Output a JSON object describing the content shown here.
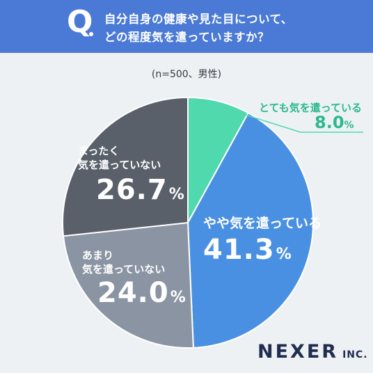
{
  "question": {
    "mark": "Q",
    "line1": "自分自身の健康や見た目について、",
    "line2": "どの程度気を遣っていますか？"
  },
  "sample_note": "(n=500、男性)",
  "chart_data": {
    "type": "pie",
    "start_angle_deg": 0,
    "direction": "clockwise",
    "slices": [
      {
        "label": "とても気を遣っている",
        "value": 8.0,
        "display": "8.0",
        "color": "#4fd9ac"
      },
      {
        "label": "やや気を遣っている",
        "value": 41.3,
        "display": "41.3",
        "color": "#4a90e2"
      },
      {
        "label_line1": "あまり",
        "label_line2": "気を遣っていない",
        "value": 24.0,
        "display": "24.0",
        "color": "#8b94a3"
      },
      {
        "label_line1": "まったく",
        "label_line2": "気を遣っていない",
        "value": 26.7,
        "display": "26.7",
        "color": "#5a606a"
      }
    ],
    "unit": "%"
  },
  "logo": {
    "main": "NEXER",
    "sub": "INC."
  }
}
